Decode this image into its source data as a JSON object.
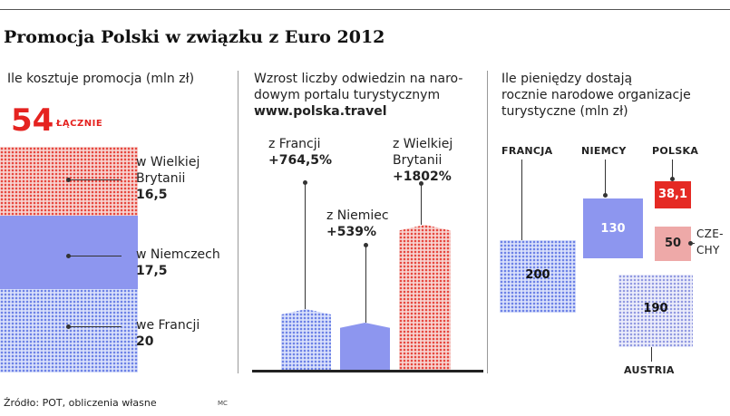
{
  "title": "Promocja Polski w związku z Euro 2012",
  "panel1": {
    "caption": "Ile kosztuje promocja (mln zł)",
    "total_value": "54",
    "total_label": "ŁĄCZNIE",
    "items": [
      {
        "label_l1": "w Wielkiej",
        "label_l2": "Brytanii",
        "value": "16,5"
      },
      {
        "label_l1": "w Niemczech",
        "value": "17,5"
      },
      {
        "label_l1": "we Francji",
        "value": "20"
      }
    ]
  },
  "panel2": {
    "caption_l1": "Wzrost liczby odwiedzin na naro-",
    "caption_l2": "dowym portalu turystycznym",
    "url": "www.polska.travel",
    "items": [
      {
        "label": "z Francji",
        "value": "+764,5%"
      },
      {
        "label": "z Niemiec",
        "value": "+539%"
      },
      {
        "label_l1": "z Wielkiej",
        "label_l2": "Brytanii",
        "value": "+1802%"
      }
    ]
  },
  "panel3": {
    "caption_l1": "Ile pieniędzy dostają",
    "caption_l2": "rocznie narodowe organizacje",
    "caption_l3": "turystyczne (mln zł)",
    "items": [
      {
        "country": "FRANCJA",
        "value": "200"
      },
      {
        "country": "NIEMCY",
        "value": "130"
      },
      {
        "country": "POLSKA",
        "value": "38,1"
      },
      {
        "country_l1": "CZE-",
        "country_l2": "CHY",
        "value": "50"
      },
      {
        "country": "AUSTRIA",
        "value": "190"
      }
    ]
  },
  "source": "Źródło: POT, obliczenia własne",
  "credit": "MC",
  "chart_data": [
    {
      "type": "bar",
      "title": "Ile kosztuje promocja (mln zł)",
      "stacked": true,
      "categories": [
        "w Wielkiej Brytanii",
        "w Niemczech",
        "we Francji"
      ],
      "values": [
        16.5,
        17.5,
        20
      ],
      "total": 54,
      "colors": [
        "#e6483f",
        "#8d96ef",
        "#6d82e6"
      ]
    },
    {
      "type": "bar",
      "title": "Wzrost liczby odwiedzin na narodowym portalu turystycznym www.polska.travel",
      "categories": [
        "z Francji",
        "z Niemiec",
        "z Wielkiej Brytanii"
      ],
      "values": [
        764.5,
        539,
        1802
      ],
      "colors": [
        "#6d82e6",
        "#8d96ef",
        "#e6483f"
      ]
    },
    {
      "type": "bar",
      "title": "Ile pieniędzy dostają rocznie narodowe organizacje turystyczne (mln zł)",
      "categories": [
        "FRANCJA",
        "NIEMCY",
        "POLSKA",
        "CZECHY",
        "AUSTRIA"
      ],
      "values": [
        200,
        130,
        38.1,
        50,
        190
      ],
      "colors": [
        "#6d82e6",
        "#8d96ef",
        "#e52a24",
        "#eea9a8",
        "#8f97e0"
      ]
    }
  ]
}
